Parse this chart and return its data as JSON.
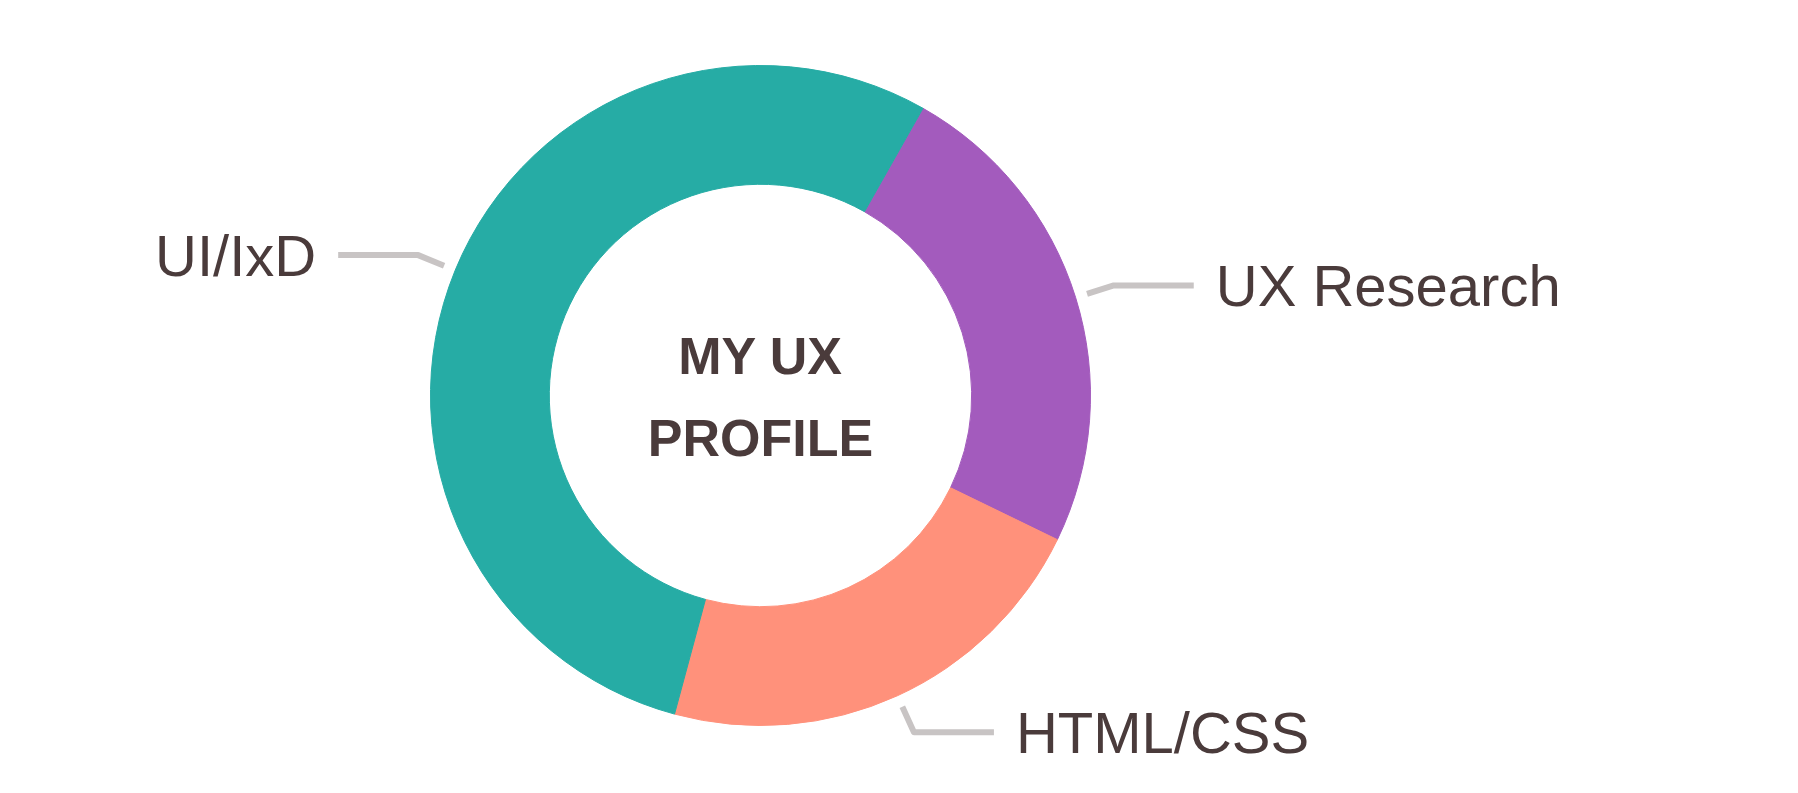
{
  "chart_data": {
    "type": "donut",
    "title": "MY UX PROFILE",
    "categories": [
      "UX Research",
      "HTML/CSS",
      "UI/IxD"
    ],
    "values": [
      24,
      22,
      54
    ],
    "colors": [
      "#a35bbd",
      "#ff917b",
      "#26aca5"
    ]
  }
}
